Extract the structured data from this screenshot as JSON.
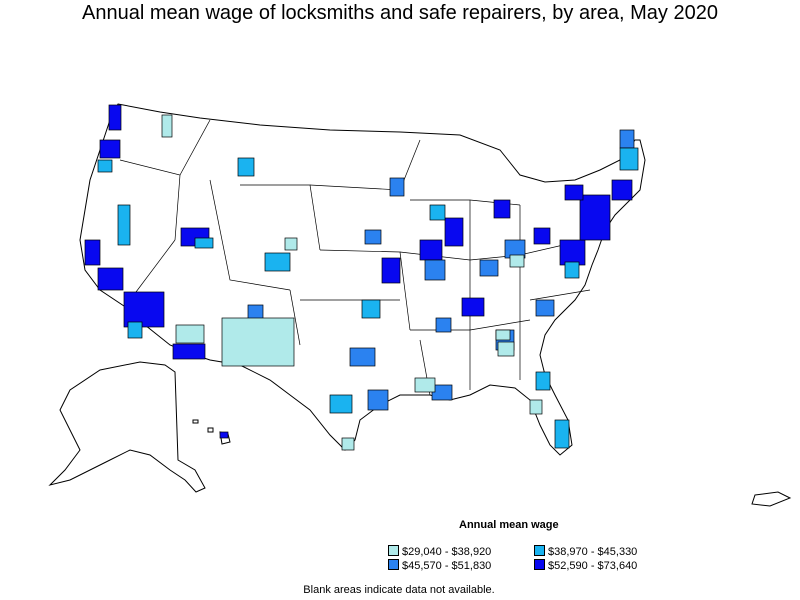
{
  "map": {
    "title": "Annual mean wage of locksmiths and safe repairers, by area, May 2020",
    "footnote": "Blank areas indicate data not available."
  },
  "legend": {
    "title": "Annual mean wage",
    "items": [
      {
        "label": "$29,040 - $38,920",
        "color": "#b0eaea"
      },
      {
        "label": "$38,970 - $45,330",
        "color": "#1ab3f0"
      },
      {
        "label": "$45,570 - $51,830",
        "color": "#2b82f0"
      },
      {
        "label": "$52,590 - $73,640",
        "color": "#0808f0"
      }
    ]
  },
  "colors": {
    "land": "#ffffff",
    "border": "#000000"
  }
}
